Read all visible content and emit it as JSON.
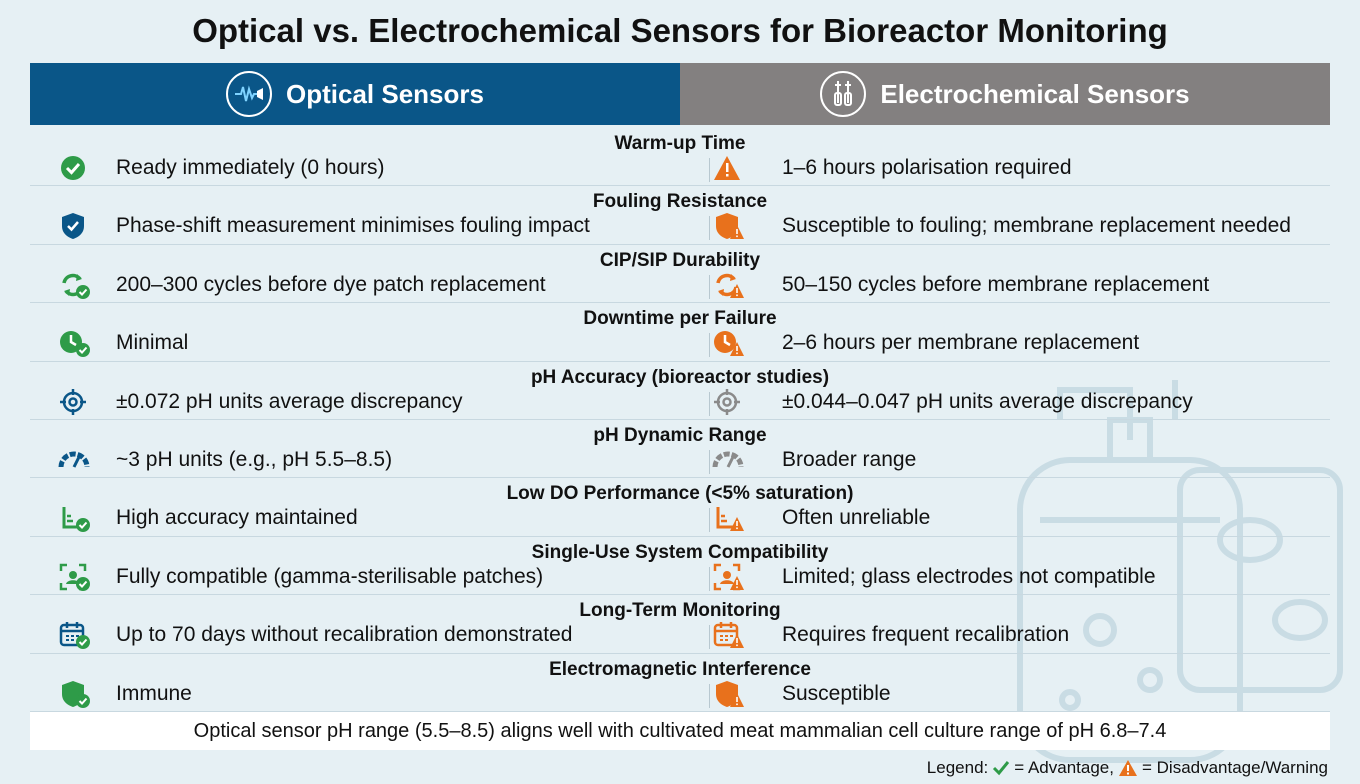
{
  "title": "Optical vs. Electrochemical Sensors for Bioreactor Monitoring",
  "header": {
    "optical": "Optical Sensors",
    "electrochemical": "Electrochemical Sensors"
  },
  "colors": {
    "optical": "#0a5688",
    "electrochemical": "#838080",
    "advantage": "#2e9b48",
    "warning": "#e8711c"
  },
  "rows": [
    {
      "title": "Warm-up Time",
      "optical": "Ready immediately (0 hours)",
      "electrochemical": "1–6 hours polarisation required",
      "optical_icon": "check-circle-icon",
      "electrochemical_icon": "warning-triangle-icon"
    },
    {
      "title": "Fouling Resistance",
      "optical": "Phase-shift measurement minimises fouling impact",
      "electrochemical": "Susceptible to fouling; membrane replacement needed",
      "optical_icon": "shield-icon",
      "electrochemical_icon": "shield-warning-icon"
    },
    {
      "title": "CIP/SIP Durability",
      "optical": "200–300 cycles before dye patch replacement",
      "electrochemical": "50–150 cycles before membrane replacement",
      "optical_icon": "cycle-check-icon",
      "electrochemical_icon": "cycle-warning-icon"
    },
    {
      "title": "Downtime per Failure",
      "optical": "Minimal",
      "electrochemical": "2–6 hours per membrane replacement",
      "optical_icon": "clock-check-icon",
      "electrochemical_icon": "clock-warning-icon"
    },
    {
      "title": "pH Accuracy (bioreactor studies)",
      "optical": "±0.072 pH units average discrepancy",
      "electrochemical": "±0.044–0.047 pH units average discrepancy",
      "optical_icon": "target-icon",
      "electrochemical_icon": "target-icon"
    },
    {
      "title": "pH Dynamic Range",
      "optical": "~3 pH units (e.g., pH 5.5–8.5)",
      "electrochemical": "Broader range",
      "optical_icon": "gauge-icon",
      "electrochemical_icon": "gauge-icon"
    },
    {
      "title": "Low DO Performance (<5% saturation)",
      "optical": "High accuracy maintained",
      "electrochemical": "Often unreliable",
      "optical_icon": "chart-check-icon",
      "electrochemical_icon": "chart-warning-icon"
    },
    {
      "title": "Single-Use System Compatibility",
      "optical": "Fully compatible (gamma-sterilisable patches)",
      "electrochemical": "Limited; glass electrodes not compatible",
      "optical_icon": "single-use-check-icon",
      "electrochemical_icon": "single-use-warning-icon"
    },
    {
      "title": "Long-Term Monitoring",
      "optical": "Up to 70 days without recalibration demonstrated",
      "electrochemical": "Requires frequent recalibration",
      "optical_icon": "calendar-check-icon",
      "electrochemical_icon": "calendar-warning-icon"
    },
    {
      "title": "Electromagnetic Interference",
      "optical": "Immune",
      "electrochemical": "Susceptible",
      "optical_icon": "shield-check-icon",
      "electrochemical_icon": "shield-warning-icon"
    }
  ],
  "note": "Optical sensor pH range (5.5–8.5) aligns well with cultivated meat mammalian cell culture range of pH 6.8–7.4",
  "legend": {
    "prefix": "Legend:",
    "advantage": "= Advantage,",
    "warning": "= Disadvantage/Warning"
  }
}
